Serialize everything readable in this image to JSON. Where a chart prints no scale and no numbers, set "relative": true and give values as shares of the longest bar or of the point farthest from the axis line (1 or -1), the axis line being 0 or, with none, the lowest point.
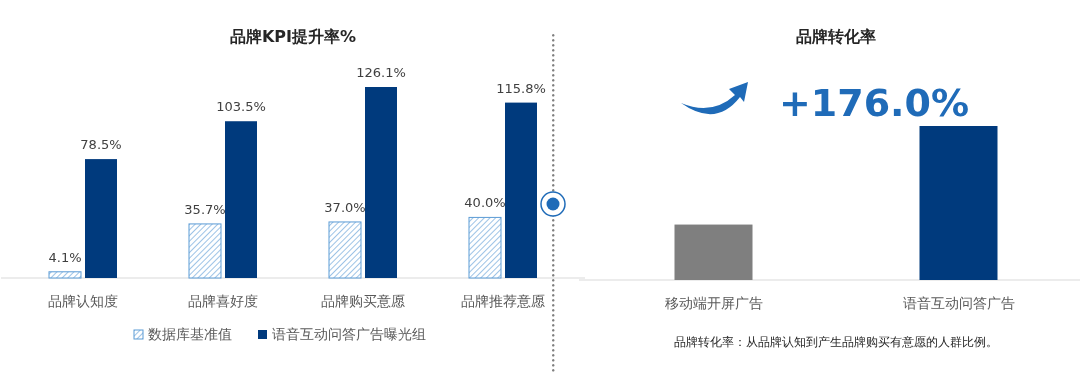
{
  "chart_data": [
    {
      "type": "bar",
      "title": "品牌KPI提升率%",
      "categories": [
        "品牌认知度",
        "品牌喜好度",
        "品牌购买意愿",
        "品牌推荐意愿"
      ],
      "series": [
        {
          "name": "数据库基准值",
          "color": "#5b9bd5",
          "values": [
            4.1,
            35.7,
            37.0,
            40.0
          ],
          "value_labels": [
            "4.1%",
            "35.7%",
            "37.0%",
            "40.0%"
          ]
        },
        {
          "name": "语音互动问答广告曝光组",
          "color": "#003a7d",
          "values": [
            78.5,
            103.5,
            126.1,
            115.8
          ],
          "value_labels": [
            "78.5%",
            "103.5%",
            "126.1%",
            "115.8%"
          ]
        }
      ],
      "legend": "bottom"
    },
    {
      "type": "bar",
      "title": "品牌转化率",
      "categories": [
        "移动端开屏广告",
        "语音互动问答广告"
      ],
      "values": [
        0.36,
        1
      ],
      "colors": [
        "#7f7f7f",
        "#003a7d"
      ],
      "relative": true,
      "annotations": [
        "+176.0%",
        "品牌转化率：从品牌认知到产生品牌购买有意愿的人群比例。"
      ]
    }
  ]
}
